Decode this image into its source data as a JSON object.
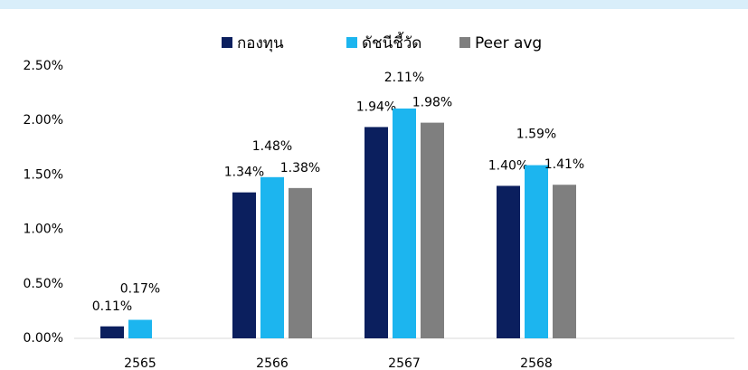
{
  "chart_data": {
    "type": "bar",
    "categories": [
      "2565",
      "2566",
      "2567",
      "2568",
      null
    ],
    "series": [
      {
        "name": "กองทุน",
        "color": "#0b1f5e",
        "values": [
          0.11,
          1.34,
          1.94,
          1.4,
          null
        ],
        "value_labels": [
          "0.11%",
          "1.34%",
          "1.94%",
          "1.40%",
          null
        ]
      },
      {
        "name": "ดัชนีชี้วัด",
        "color": "#1cb5ef",
        "values": [
          0.17,
          1.48,
          2.11,
          1.59,
          null
        ],
        "value_labels": [
          "0.17%",
          "1.48%",
          "2.11%",
          "1.59%",
          null
        ]
      },
      {
        "name": "Peer avg",
        "color": "#7f7f7f",
        "values": [
          null,
          1.38,
          1.98,
          1.41,
          null
        ],
        "value_labels": [
          null,
          "1.38%",
          "1.98%",
          "1.41%",
          null
        ]
      }
    ],
    "ylim": [
      0,
      2.5
    ],
    "yticks": [
      {
        "value": 0,
        "label": "0.00%"
      },
      {
        "value": 0.5,
        "label": "0.50%"
      },
      {
        "value": 1,
        "label": "1.00%"
      },
      {
        "value": 1.5,
        "label": "1.50%"
      },
      {
        "value": 2,
        "label": "2.00%"
      },
      {
        "value": 2.5,
        "label": "2.50%"
      }
    ],
    "grid": false,
    "legend": "top"
  }
}
